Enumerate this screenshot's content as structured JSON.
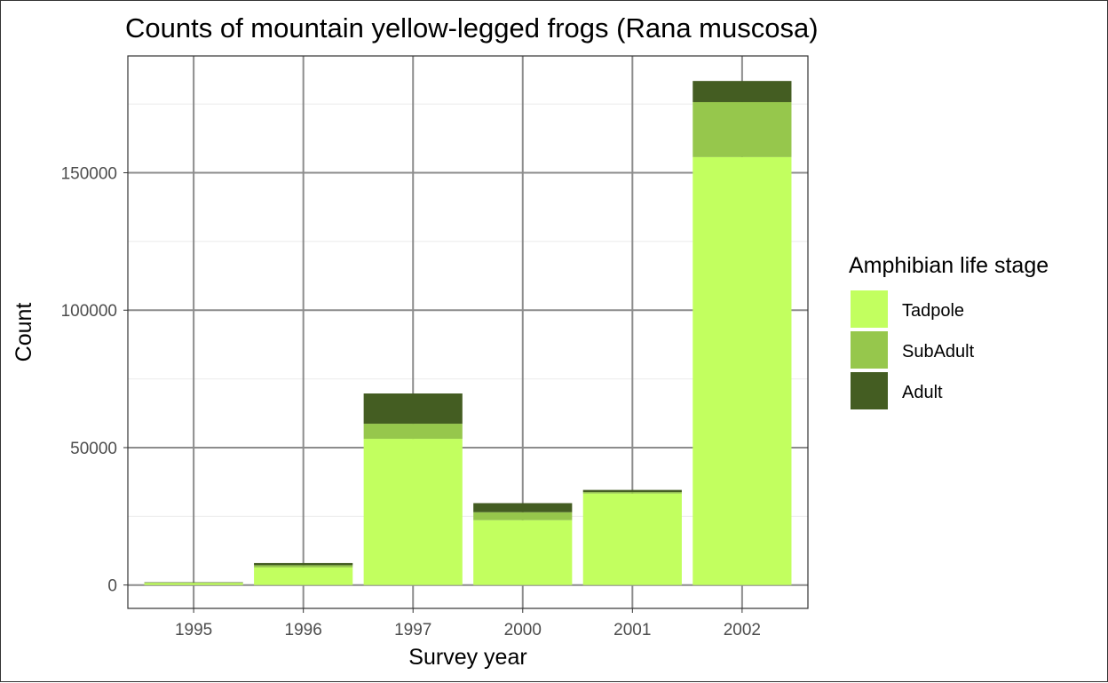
{
  "chart_data": {
    "type": "bar",
    "stacked": true,
    "title": "Counts of mountain yellow-legged frogs (Rana muscosa)",
    "xlabel": "Survey year",
    "ylabel": "Count",
    "categories": [
      "1995",
      "1996",
      "1997",
      "2000",
      "2001",
      "2002"
    ],
    "yticks": [
      0,
      50000,
      100000,
      150000
    ],
    "ylim": [
      -8500,
      192500
    ],
    "grid": true,
    "legend_title": "Amphibian life stage",
    "legend_position": "right",
    "series": [
      {
        "name": "Tadpole",
        "color": "#c2ff5f",
        "values": [
          700,
          6400,
          53200,
          23600,
          33300,
          155700
        ]
      },
      {
        "name": "SubAdult",
        "color": "#96c74c",
        "values": [
          150,
          800,
          5500,
          2900,
          500,
          20000
        ]
      },
      {
        "name": "Adult",
        "color": "#445d22",
        "values": [
          150,
          800,
          11000,
          3300,
          800,
          7700
        ]
      }
    ]
  }
}
